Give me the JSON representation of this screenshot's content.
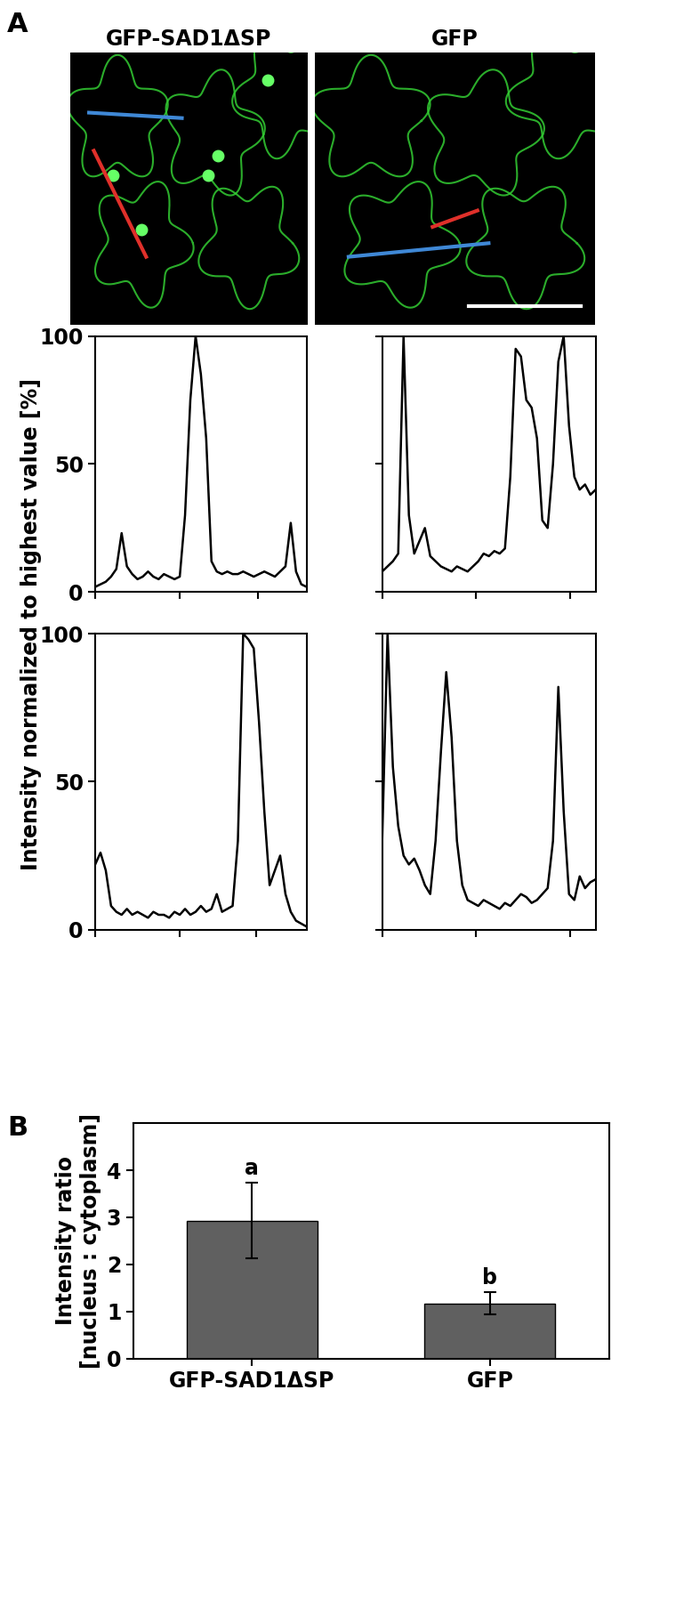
{
  "panel_labels": [
    "A",
    "B"
  ],
  "profile_ylabel": "Intensity normalized to highest value [%]",
  "images": [
    {
      "title": "GFP-SAD1ΔSP",
      "line_colors": [
        "#3f88d6",
        "#e0302a"
      ],
      "nuclei": true,
      "scale_bar": false
    },
    {
      "title": "GFP",
      "line_colors": [
        "#3f88d6",
        "#e0302a"
      ],
      "nuclei": false,
      "scale_bar": true
    }
  ],
  "chart_data": [
    {
      "type": "line",
      "color": "#000000",
      "tick_labels": "y",
      "x": [
        0,
        2.5,
        5,
        7.5,
        10,
        12.5,
        15,
        17.5,
        20,
        22.5,
        25,
        27.5,
        30,
        32.5,
        35,
        37.5,
        40,
        42.5,
        45,
        47.5,
        50,
        52.5,
        55,
        57.5,
        60,
        62.5,
        65,
        67.5,
        70,
        72.5,
        75,
        77.5,
        80,
        82.5,
        85,
        87.5,
        90,
        92.5,
        95,
        97.5,
        100
      ],
      "values": [
        2,
        3,
        4,
        6,
        9,
        23,
        10,
        7,
        5,
        6,
        8,
        6,
        5,
        7,
        6,
        5,
        6,
        30,
        75,
        100,
        85,
        60,
        12,
        8,
        7,
        8,
        7,
        7,
        8,
        7,
        6,
        7,
        8,
        7,
        6,
        8,
        10,
        27,
        8,
        3,
        2
      ],
      "xlim": [
        0,
        100
      ],
      "xticks": [
        0,
        40,
        77
      ],
      "ylim": [
        0,
        100
      ],
      "yticks": [
        0,
        50,
        100
      ]
    },
    {
      "type": "line",
      "color": "#000000",
      "tick_labels": false,
      "x": [
        0,
        2.5,
        5,
        7.5,
        10,
        12.5,
        15,
        17.5,
        20,
        22.5,
        25,
        27.5,
        30,
        32.5,
        35,
        37.5,
        40,
        42.5,
        45,
        47.5,
        50,
        52.5,
        55,
        57.5,
        60,
        62.5,
        65,
        67.5,
        70,
        72.5,
        75,
        77.5,
        80,
        82.5,
        85,
        87.5,
        90,
        92.5,
        95,
        97.5,
        100
      ],
      "values": [
        8,
        10,
        12,
        15,
        100,
        30,
        15,
        20,
        25,
        14,
        12,
        10,
        9,
        8,
        10,
        9,
        8,
        10,
        12,
        15,
        14,
        16,
        15,
        17,
        45,
        95,
        92,
        75,
        72,
        60,
        28,
        25,
        50,
        90,
        100,
        65,
        45,
        40,
        42,
        38,
        40
      ],
      "xlim": [
        0,
        100
      ],
      "xticks": [
        0,
        44,
        88
      ],
      "ylim": [
        0,
        100
      ],
      "yticks": [
        0,
        50,
        100
      ]
    },
    {
      "type": "line",
      "color": "#000000",
      "tick_labels": "y",
      "x": [
        0,
        2.5,
        5,
        7.5,
        10,
        12.5,
        15,
        17.5,
        20,
        22.5,
        25,
        27.5,
        30,
        32.5,
        35,
        37.5,
        40,
        42.5,
        45,
        47.5,
        50,
        52.5,
        55,
        57.5,
        60,
        62.5,
        65,
        67.5,
        70,
        72.5,
        75,
        77.5,
        80,
        82.5,
        85,
        87.5,
        90,
        92.5,
        95,
        97.5,
        100
      ],
      "values": [
        22,
        26,
        20,
        8,
        6,
        5,
        7,
        5,
        6,
        5,
        4,
        6,
        5,
        5,
        4,
        6,
        5,
        7,
        5,
        6,
        8,
        6,
        7,
        12,
        6,
        7,
        8,
        30,
        100,
        98,
        95,
        70,
        40,
        15,
        20,
        25,
        12,
        6,
        3,
        2,
        1
      ],
      "xlim": [
        0,
        100
      ],
      "xticks": [
        0,
        40,
        76
      ],
      "ylim": [
        0,
        100
      ],
      "yticks": [
        0,
        50,
        100
      ]
    },
    {
      "type": "line",
      "color": "#000000",
      "tick_labels": false,
      "x": [
        0,
        2.5,
        5,
        7.5,
        10,
        12.5,
        15,
        17.5,
        20,
        22.5,
        25,
        27.5,
        30,
        32.5,
        35,
        37.5,
        40,
        42.5,
        45,
        47.5,
        50,
        52.5,
        55,
        57.5,
        60,
        62.5,
        65,
        67.5,
        70,
        72.5,
        75,
        77.5,
        80,
        82.5,
        85,
        87.5,
        90,
        92.5,
        95,
        97.5,
        100
      ],
      "values": [
        30,
        100,
        55,
        35,
        25,
        22,
        24,
        20,
        15,
        12,
        30,
        60,
        87,
        65,
        30,
        15,
        10,
        9,
        8,
        10,
        9,
        8,
        7,
        9,
        8,
        10,
        12,
        11,
        9,
        10,
        12,
        14,
        30,
        82,
        40,
        12,
        10,
        18,
        14,
        16,
        17
      ],
      "xlim": [
        0,
        100
      ],
      "xticks": [
        0,
        44,
        88
      ],
      "ylim": [
        0,
        100
      ],
      "yticks": [
        0,
        50,
        100
      ]
    },
    {
      "type": "bar",
      "categories": [
        "GFP-SAD1ΔSP",
        "GFP"
      ],
      "values": [
        2.93,
        1.17
      ],
      "error": [
        0.81,
        0.24
      ],
      "annotations": [
        "a",
        "b"
      ],
      "color": "#606060",
      "ylabel": "Intensity ratio\n[nucleus : cytoplasm]",
      "ylim": [
        0,
        5
      ],
      "yticks": [
        0,
        1,
        2,
        3,
        4
      ]
    }
  ]
}
